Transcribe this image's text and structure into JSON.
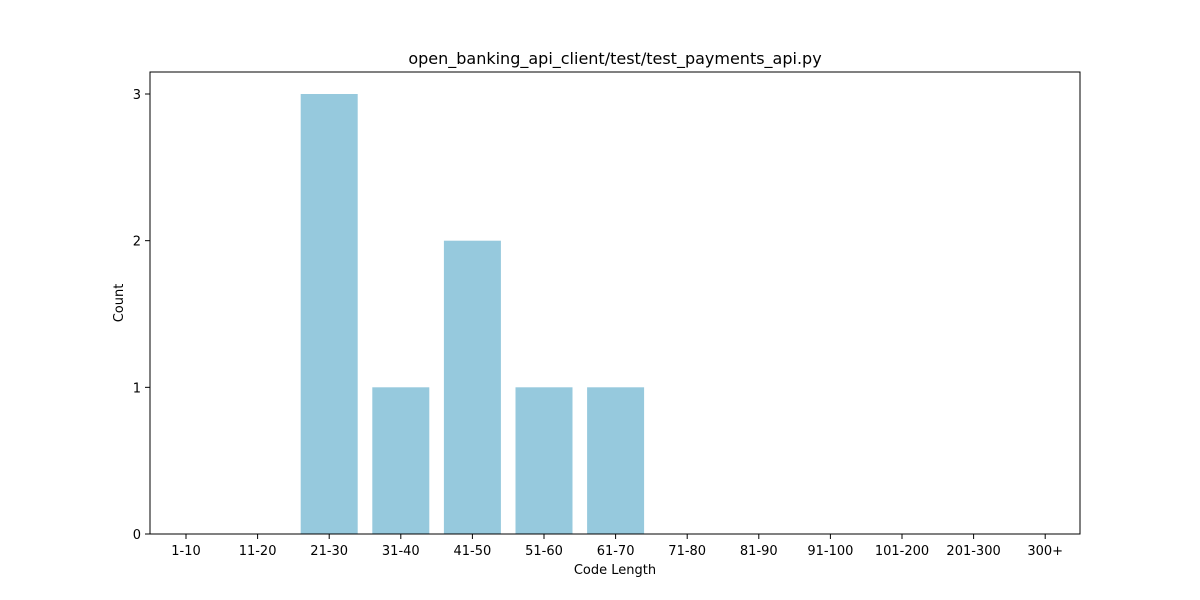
{
  "chart_data": {
    "type": "bar",
    "title": "open_banking_api_client/test/test_payments_api.py",
    "xlabel": "Code Length",
    "ylabel": "Count",
    "categories": [
      "1-10",
      "11-20",
      "21-30",
      "31-40",
      "41-50",
      "51-60",
      "61-70",
      "71-80",
      "81-90",
      "91-100",
      "101-200",
      "201-300",
      "300+"
    ],
    "values": [
      0,
      0,
      3,
      1,
      2,
      1,
      1,
      0,
      0,
      0,
      0,
      0,
      0
    ],
    "ylim": [
      0,
      3.15
    ],
    "yticks": [
      0,
      1,
      2,
      3
    ],
    "bar_color": "#96c9dd",
    "grid": false,
    "legend": "none"
  }
}
